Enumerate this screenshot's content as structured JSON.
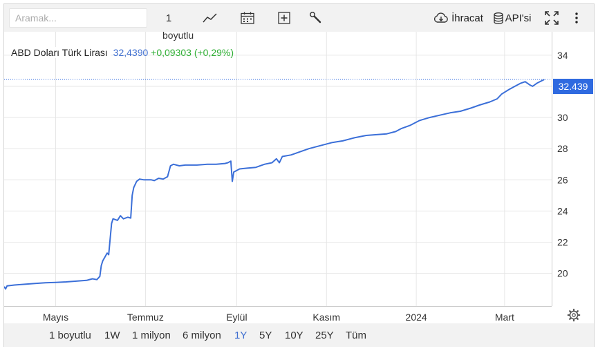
{
  "toolbar": {
    "search_placeholder": "Aramak...",
    "interval_value": "1",
    "interval_unit": "boyutlu",
    "export_label": "İhracat",
    "api_label": "API'si",
    "icons": [
      "line-chart-icon",
      "calendar-icon",
      "plus-box-icon",
      "wrench-icon",
      "cloud-download-icon",
      "database-icon",
      "fullscreen-icon",
      "more-vertical-icon"
    ]
  },
  "legend": {
    "name": "ABD Doları Türk Lirası",
    "price": "32,4390",
    "change": "+0,09303 (+0,29%)"
  },
  "last_price_tag": "32.439",
  "range_buttons": [
    {
      "label": "1 boyutlu",
      "active": false
    },
    {
      "label": "1W",
      "active": false
    },
    {
      "label": "1 milyon",
      "active": false
    },
    {
      "label": "6 milyon",
      "active": false
    },
    {
      "label": "1Y",
      "active": true
    },
    {
      "label": "5Y",
      "active": false
    },
    {
      "label": "10Y",
      "active": false
    },
    {
      "label": "25Y",
      "active": false
    },
    {
      "label": "Tüm",
      "active": false
    }
  ],
  "colors": {
    "line": "#3b6fd8",
    "price_tag": "#2f6ae0",
    "change_positive": "#2eae33",
    "price": "#3f6fd0"
  },
  "chart_data": {
    "type": "line",
    "title": "",
    "xlabel": "",
    "ylabel": "",
    "ylim": [
      17.9,
      35.5
    ],
    "xlim": [
      "2023-03-27",
      "2024-04-02"
    ],
    "y_ticks": [
      20,
      22,
      24,
      26,
      28,
      30,
      32,
      34
    ],
    "y_tick_labels": [
      "20",
      "22",
      "24",
      "26",
      "28",
      "30",
      "34"
    ],
    "x_tick_labels": [
      {
        "label": "Mayıs",
        "date": "2023-05-01"
      },
      {
        "label": "Temmuz",
        "date": "2023-07-01"
      },
      {
        "label": "Eylül",
        "date": "2023-09-01"
      },
      {
        "label": "Kasım",
        "date": "2023-11-01"
      },
      {
        "label": "2024",
        "date": "2024-01-01"
      },
      {
        "label": "Mart",
        "date": "2024-03-01"
      }
    ],
    "grid": true,
    "series": [
      {
        "points": [
          [
            "2023-03-27",
            19.15
          ],
          [
            "2023-03-28",
            19.0
          ],
          [
            "2023-03-29",
            19.2
          ],
          [
            "2023-04-03",
            19.25
          ],
          [
            "2023-04-10",
            19.3
          ],
          [
            "2023-04-17",
            19.35
          ],
          [
            "2023-04-24",
            19.4
          ],
          [
            "2023-05-01",
            19.42
          ],
          [
            "2023-05-08",
            19.45
          ],
          [
            "2023-05-15",
            19.5
          ],
          [
            "2023-05-22",
            19.55
          ],
          [
            "2023-05-26",
            19.65
          ],
          [
            "2023-05-29",
            19.6
          ],
          [
            "2023-05-31",
            19.8
          ],
          [
            "2023-06-01",
            20.5
          ],
          [
            "2023-06-02",
            20.8
          ],
          [
            "2023-06-05",
            21.3
          ],
          [
            "2023-06-06",
            21.2
          ],
          [
            "2023-06-08",
            23.2
          ],
          [
            "2023-06-09",
            23.5
          ],
          [
            "2023-06-12",
            23.4
          ],
          [
            "2023-06-14",
            23.7
          ],
          [
            "2023-06-16",
            23.5
          ],
          [
            "2023-06-19",
            23.6
          ],
          [
            "2023-06-21",
            23.55
          ],
          [
            "2023-06-22",
            25.0
          ],
          [
            "2023-06-23",
            25.5
          ],
          [
            "2023-06-25",
            25.9
          ],
          [
            "2023-06-27",
            26.05
          ],
          [
            "2023-06-30",
            26.0
          ],
          [
            "2023-07-05",
            26.0
          ],
          [
            "2023-07-07",
            25.95
          ],
          [
            "2023-07-10",
            26.1
          ],
          [
            "2023-07-13",
            26.05
          ],
          [
            "2023-07-16",
            26.2
          ],
          [
            "2023-07-18",
            26.9
          ],
          [
            "2023-07-20",
            27.0
          ],
          [
            "2023-07-24",
            26.9
          ],
          [
            "2023-07-28",
            26.95
          ],
          [
            "2023-08-05",
            26.95
          ],
          [
            "2023-08-12",
            27.0
          ],
          [
            "2023-08-18",
            27.0
          ],
          [
            "2023-08-24",
            27.05
          ],
          [
            "2023-08-26",
            27.1
          ],
          [
            "2023-08-28",
            27.2
          ],
          [
            "2023-08-29",
            25.9
          ],
          [
            "2023-08-30",
            26.5
          ],
          [
            "2023-09-03",
            26.7
          ],
          [
            "2023-09-08",
            26.75
          ],
          [
            "2023-09-14",
            26.8
          ],
          [
            "2023-09-20",
            27.0
          ],
          [
            "2023-09-25",
            27.1
          ],
          [
            "2023-09-28",
            27.35
          ],
          [
            "2023-09-30",
            27.1
          ],
          [
            "2023-10-02",
            27.5
          ],
          [
            "2023-10-08",
            27.6
          ],
          [
            "2023-10-14",
            27.8
          ],
          [
            "2023-10-20",
            28.0
          ],
          [
            "2023-10-28",
            28.2
          ],
          [
            "2023-11-05",
            28.4
          ],
          [
            "2023-11-12",
            28.5
          ],
          [
            "2023-11-20",
            28.7
          ],
          [
            "2023-11-28",
            28.85
          ],
          [
            "2023-12-05",
            28.9
          ],
          [
            "2023-12-12",
            28.95
          ],
          [
            "2023-12-18",
            29.1
          ],
          [
            "2023-12-22",
            29.3
          ],
          [
            "2023-12-28",
            29.5
          ],
          [
            "2024-01-03",
            29.8
          ],
          [
            "2024-01-10",
            30.0
          ],
          [
            "2024-01-17",
            30.15
          ],
          [
            "2024-01-24",
            30.3
          ],
          [
            "2024-01-31",
            30.4
          ],
          [
            "2024-02-07",
            30.6
          ],
          [
            "2024-02-13",
            30.8
          ],
          [
            "2024-02-20",
            31.0
          ],
          [
            "2024-02-25",
            31.2
          ],
          [
            "2024-02-28",
            31.5
          ],
          [
            "2024-03-04",
            31.8
          ],
          [
            "2024-03-08",
            32.0
          ],
          [
            "2024-03-12",
            32.2
          ],
          [
            "2024-03-15",
            32.3
          ],
          [
            "2024-03-18",
            32.1
          ],
          [
            "2024-03-20",
            32.0
          ],
          [
            "2024-03-23",
            32.2
          ],
          [
            "2024-03-26",
            32.35
          ],
          [
            "2024-03-28",
            32.439
          ]
        ]
      }
    ],
    "last_value": 32.439
  }
}
